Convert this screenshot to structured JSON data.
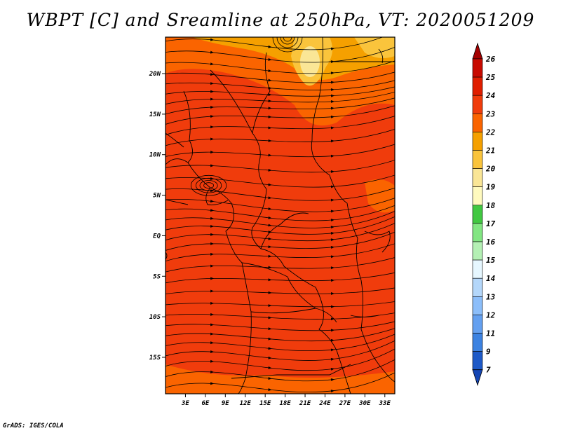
{
  "title": "WBPT [C] and Sreamline at 250hPa, VT: 2020051209",
  "credit": "GrADS: IGES/COLA",
  "map": {
    "lat_ticks": [
      "20N",
      "15N",
      "10N",
      "5N",
      "EQ",
      "5S",
      "10S",
      "15S"
    ],
    "lat_values": [
      20,
      15,
      10,
      5,
      0,
      -5,
      -10,
      -15
    ],
    "lon_ticks": [
      "3E",
      "6E",
      "9E",
      "12E",
      "15E",
      "18E",
      "21E",
      "24E",
      "27E",
      "30E",
      "33E"
    ],
    "lon_values": [
      3,
      6,
      9,
      12,
      15,
      18,
      21,
      24,
      27,
      30,
      33
    ],
    "lon_range": [
      0,
      34.5
    ],
    "lat_range": [
      -19.5,
      24.5
    ],
    "field_color": "#f03c0c",
    "warm_color": "#f5a000",
    "light_color": "#fad060"
  },
  "colorbar": {
    "labels": [
      "26",
      "25",
      "24",
      "23",
      "22",
      "21",
      "20",
      "19",
      "18",
      "17",
      "16",
      "15",
      "14",
      "13",
      "12",
      "11",
      "9",
      "7"
    ],
    "colors": [
      "#a50000",
      "#c80a00",
      "#e01e00",
      "#f03c0c",
      "#fa6400",
      "#f5a000",
      "#fac43c",
      "#fae696",
      "#fffabe",
      "#41c841",
      "#82e682",
      "#b4f0b4",
      "#e6f7ff",
      "#b4d7fa",
      "#8cbefa",
      "#64a0f0",
      "#3c82e1",
      "#1e5ac8",
      "#1446b4"
    ]
  }
}
